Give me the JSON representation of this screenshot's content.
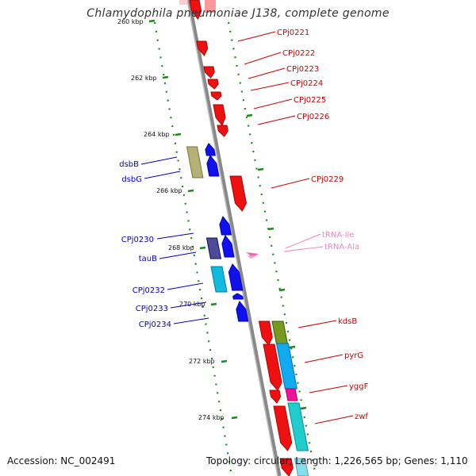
{
  "title": "Chlamydophila pneumoniae J138, complete genome",
  "accession": "Accession: NC_002491",
  "topology": "Topology: circular; Length: 1,226,565 bp; Genes: 1,110",
  "colors": {
    "backbone": "#888888",
    "ruler_dot": "#1a8a1a",
    "forward_label": "#0000cc",
    "reverse_label": "#cc0000",
    "trna_label": "#ee88bb"
  },
  "ruler": [
    "260 kbp",
    "262 kbp",
    "264 kbp",
    "266 kbp",
    "268 kbp",
    "270 kbp",
    "272 kbp",
    "274 kbp"
  ],
  "reverse_genes": [
    "CPj0221",
    "CPj0222",
    "CPj0223",
    "CPj0224",
    "CPj0225",
    "CPj0226",
    "CPj0229",
    "kdsB",
    "pyrG",
    "yggF",
    "zwf"
  ],
  "forward_genes": [
    "dsbB",
    "dsbG",
    "CPj0230",
    "tauB",
    "CPj0232",
    "CPj0233",
    "CPj0234"
  ],
  "trna_genes": [
    "tRNA-Ile",
    "tRNA-Ala"
  ]
}
